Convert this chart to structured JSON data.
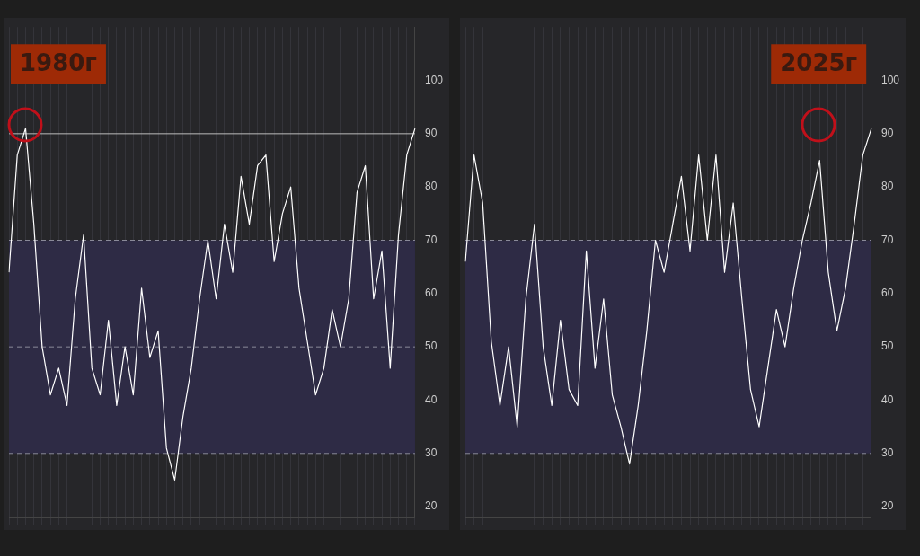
{
  "chart_data": [
    {
      "type": "line",
      "categories": [
        null,
        null,
        null,
        null,
        null,
        null,
        null,
        null,
        null,
        null,
        null,
        null,
        null,
        null,
        null,
        null,
        null,
        null,
        null,
        null,
        null,
        null,
        null,
        null,
        null,
        null,
        null,
        null,
        null,
        null,
        null,
        null,
        null,
        null,
        null,
        null,
        null,
        null,
        null,
        null,
        null,
        null,
        null,
        null,
        null,
        null,
        null,
        null,
        null,
        null
      ],
      "series": [
        {
          "color": "#ffffff",
          "values": [
            64,
            86,
            91,
            73,
            50,
            41,
            46,
            39,
            59,
            71,
            46,
            41,
            55,
            39,
            50,
            41,
            61,
            48,
            53,
            31,
            25,
            37,
            46,
            59,
            70,
            59,
            73,
            64,
            82,
            73,
            84,
            86,
            66,
            75,
            80,
            61,
            51,
            41,
            46,
            57,
            50,
            59,
            79,
            84,
            59,
            68,
            46,
            71,
            86,
            91
          ]
        }
      ],
      "ylim": [
        18,
        110
      ],
      "yticks": [
        20,
        30,
        40,
        50,
        60,
        70,
        80,
        90,
        100
      ],
      "tick_labels": "y",
      "grid": "x",
      "ref_lines": [
        {
          "axis": "y",
          "value": 70,
          "line_style": "dashed",
          "color": "#8a8a99"
        },
        {
          "axis": "y",
          "value": 50,
          "line_style": "dashed",
          "color": "#8a8a99"
        },
        {
          "axis": "y",
          "value": 30,
          "line_style": "dashed",
          "color": "#8a8a99"
        },
        {
          "axis": "y",
          "value": 90,
          "line_style": "solid",
          "color": "#bbbbbb"
        }
      ],
      "bands": [
        {
          "axis": "y",
          "from": 30,
          "to": 70,
          "color": "#2e2b45"
        }
      ],
      "annotations": [
        "1980г"
      ]
    },
    {
      "type": "line",
      "categories": [
        null,
        null,
        null,
        null,
        null,
        null,
        null,
        null,
        null,
        null,
        null,
        null,
        null,
        null,
        null,
        null,
        null,
        null,
        null,
        null,
        null,
        null,
        null,
        null,
        null,
        null,
        null,
        null,
        null,
        null,
        null,
        null,
        null,
        null,
        null,
        null,
        null,
        null,
        null,
        null,
        null,
        null,
        null,
        null,
        null,
        null,
        null,
        null
      ],
      "series": [
        {
          "color": "#ffffff",
          "values": [
            66,
            86,
            77,
            51,
            39,
            50,
            35,
            59,
            73,
            50,
            39,
            55,
            42,
            39,
            68,
            46,
            59,
            41,
            35,
            28,
            39,
            53,
            70,
            64,
            73,
            82,
            68,
            86,
            70,
            86,
            64,
            77,
            59,
            42,
            35,
            46,
            57,
            50,
            61,
            70,
            77,
            85,
            64,
            53,
            61,
            73,
            86,
            91
          ]
        }
      ],
      "ylim": [
        18,
        110
      ],
      "yticks": [
        20,
        30,
        40,
        50,
        60,
        70,
        80,
        90,
        100
      ],
      "tick_labels": "y",
      "grid": "x",
      "ref_lines": [
        {
          "axis": "y",
          "value": 70,
          "line_style": "dashed",
          "color": "#8a8a99"
        },
        {
          "axis": "y",
          "value": 30,
          "line_style": "dashed",
          "color": "#8a8a99"
        }
      ],
      "bands": [
        {
          "axis": "y",
          "from": 30,
          "to": 70,
          "color": "#2e2b45"
        }
      ],
      "annotations": [
        "2025г"
      ]
    }
  ]
}
